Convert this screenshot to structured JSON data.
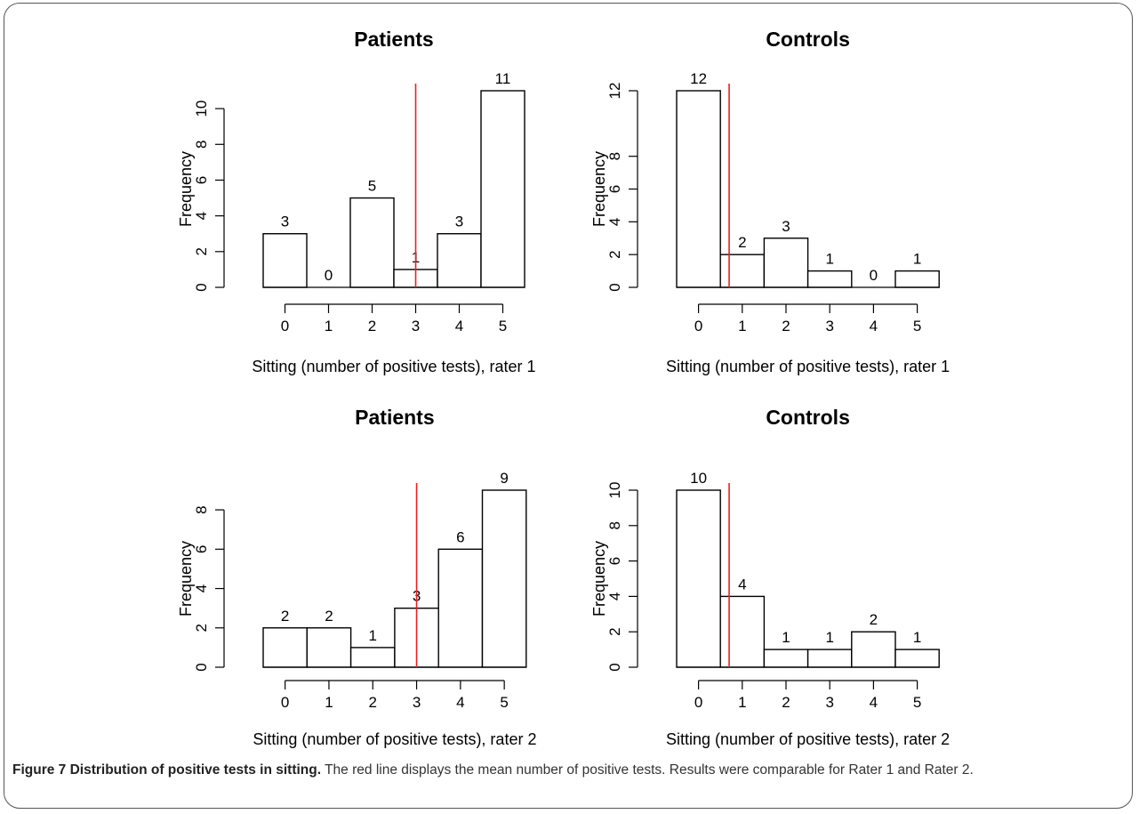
{
  "caption": {
    "title": "Figure 7 Distribution of positive tests in sitting.",
    "text": " The red line displays the mean number of positive tests. Results were comparable for Rater 1 and Rater 2."
  },
  "colors": {
    "bar_fill": "#ffffff",
    "bar_stroke": "#000000",
    "mean_line": "#e8211f"
  },
  "chart_data": [
    {
      "type": "bar",
      "title": "Patients",
      "xlabel": "Sitting (number of positive tests), rater 1",
      "ylabel": "Frequency",
      "categories": [
        "0",
        "1",
        "2",
        "3",
        "4",
        "5"
      ],
      "values": [
        3,
        0,
        5,
        1,
        3,
        11
      ],
      "value_labels": [
        "3",
        "0",
        "5",
        "1",
        "3",
        "11"
      ],
      "yticks": [
        0,
        2,
        4,
        6,
        8,
        10
      ],
      "ylim": [
        0,
        11
      ],
      "mean_line_x": 3.0
    },
    {
      "type": "bar",
      "title": "Controls",
      "xlabel": "Sitting (number of positive tests), rater 1",
      "ylabel": "Frequency",
      "categories": [
        "0",
        "1",
        "2",
        "3",
        "4",
        "5"
      ],
      "values": [
        12,
        2,
        3,
        1,
        0,
        1
      ],
      "value_labels": [
        "12",
        "2",
        "3",
        "1",
        "0",
        "1"
      ],
      "yticks": [
        0,
        2,
        4,
        6,
        8,
        12
      ],
      "ylim": [
        0,
        12
      ],
      "mean_line_x": 0.7
    },
    {
      "type": "bar",
      "title": "Patients",
      "xlabel": "Sitting (number of positive tests), rater 2",
      "ylabel": "Frequency",
      "categories": [
        "0",
        "1",
        "2",
        "3",
        "4",
        "5"
      ],
      "values": [
        2,
        2,
        1,
        3,
        6,
        9
      ],
      "value_labels": [
        "2",
        "2",
        "1",
        "3",
        "6",
        "9"
      ],
      "yticks": [
        0,
        2,
        4,
        6,
        8
      ],
      "ylim": [
        0,
        9
      ],
      "mean_line_x": 3.0
    },
    {
      "type": "bar",
      "title": "Controls",
      "xlabel": "Sitting (number of positive tests), rater 2",
      "ylabel": "Frequency",
      "categories": [
        "0",
        "1",
        "2",
        "3",
        "4",
        "5"
      ],
      "values": [
        10,
        4,
        1,
        1,
        2,
        1
      ],
      "value_labels": [
        "10",
        "4",
        "1",
        "1",
        "2",
        "1"
      ],
      "yticks": [
        0,
        2,
        4,
        6,
        8,
        10
      ],
      "ylim": [
        0,
        10
      ],
      "mean_line_x": 0.7
    }
  ]
}
